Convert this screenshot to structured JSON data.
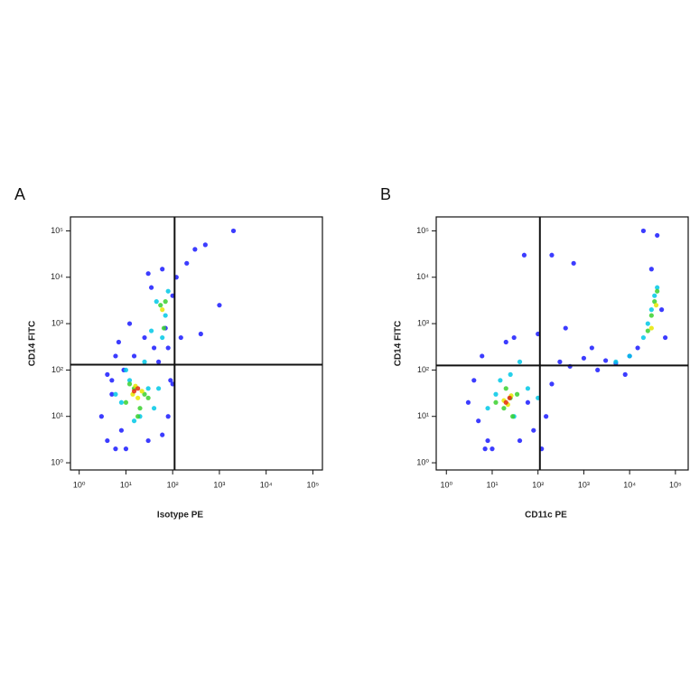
{
  "chart_data": [
    {
      "type": "scatter",
      "panel": "A",
      "x_label": "Isotype PE",
      "y_label": "CD14 FITC",
      "log_x": true,
      "log_y": true,
      "xlim": [
        0.65,
        160000
      ],
      "ylim": [
        0.7,
        200000
      ],
      "xticks": [
        {
          "value": 1,
          "label": "10⁰"
        },
        {
          "value": 10,
          "label": "10¹"
        },
        {
          "value": 100,
          "label": "10²"
        },
        {
          "value": 1000,
          "label": "10³"
        },
        {
          "value": 10000,
          "label": "10⁴"
        },
        {
          "value": 100000,
          "label": "10⁵"
        }
      ],
      "yticks": [
        {
          "value": 1,
          "label": "10⁰"
        },
        {
          "value": 10,
          "label": "10¹"
        },
        {
          "value": 100,
          "label": "10²"
        },
        {
          "value": 1000,
          "label": "10³"
        },
        {
          "value": 10000,
          "label": "10⁴"
        },
        {
          "value": 100000,
          "label": "10⁵"
        }
      ],
      "gate_x": 110,
      "gate_y": 130,
      "series": [
        {
          "color": "#1a1aff",
          "x": [
            3,
            5,
            4,
            8,
            6,
            30,
            60,
            80,
            90,
            50,
            4,
            6,
            10,
            40,
            70,
            25,
            12,
            7,
            5,
            100,
            200,
            300,
            500,
            1000,
            400,
            150,
            120,
            2000,
            60,
            30,
            15,
            9,
            80,
            100,
            35
          ],
          "y": [
            10,
            30,
            80,
            5,
            200,
            3,
            4,
            10,
            60,
            150,
            3,
            2,
            2,
            300,
            800,
            500,
            1000,
            400,
            60,
            4000,
            20000,
            40000,
            50000,
            2500,
            600,
            500,
            10000,
            100000,
            15000,
            12000,
            200,
            100,
            300,
            50,
            6000
          ]
        },
        {
          "color": "#00c8e6",
          "x": [
            8,
            12,
            20,
            30,
            40,
            10,
            25,
            50,
            60,
            70,
            45,
            15,
            6,
            35,
            80
          ],
          "y": [
            20,
            60,
            10,
            40,
            15,
            100,
            150,
            40,
            500,
            1500,
            3000,
            8,
            30,
            700,
            5000
          ]
        },
        {
          "color": "#39d12e",
          "x": [
            10,
            15,
            20,
            25,
            12,
            18,
            30,
            55,
            65,
            70
          ],
          "y": [
            20,
            40,
            15,
            30,
            50,
            10,
            25,
            2500,
            800,
            3000
          ]
        },
        {
          "color": "#e6e600",
          "x": [
            14,
            18,
            22,
            16,
            60
          ],
          "y": [
            30,
            25,
            35,
            45,
            2000
          ]
        },
        {
          "color": "#e62a10",
          "x": [
            15,
            18
          ],
          "y": [
            35,
            40
          ]
        }
      ]
    },
    {
      "type": "scatter",
      "panel": "B",
      "x_label": "CD11c PE",
      "y_label": "CD14 FITC",
      "log_x": true,
      "log_y": true,
      "xlim": [
        0.6,
        190000
      ],
      "ylim": [
        0.7,
        200000
      ],
      "xticks": [
        {
          "value": 1,
          "label": "10⁰"
        },
        {
          "value": 10,
          "label": "10¹"
        },
        {
          "value": 100,
          "label": "10²"
        },
        {
          "value": 1000,
          "label": "10³"
        },
        {
          "value": 10000,
          "label": "10⁴"
        },
        {
          "value": 100000,
          "label": "10⁵"
        }
      ],
      "yticks": [
        {
          "value": 1,
          "label": "10⁰"
        },
        {
          "value": 10,
          "label": "10¹"
        },
        {
          "value": 100,
          "label": "10²"
        },
        {
          "value": 1000,
          "label": "10³"
        },
        {
          "value": 10000,
          "label": "10⁴"
        },
        {
          "value": 100000,
          "label": "10⁵"
        }
      ],
      "gate_x": 110,
      "gate_y": 125,
      "series": [
        {
          "color": "#1a1aff",
          "x": [
            3,
            5,
            4,
            6,
            8,
            10,
            40,
            80,
            150,
            200,
            300,
            500,
            1000,
            2000,
            3000,
            5000,
            8000,
            10000,
            15000,
            200,
            50,
            30,
            20,
            7,
            100,
            400,
            600,
            20000,
            50000,
            60000,
            30000,
            40000,
            1500,
            120,
            60
          ],
          "y": [
            20,
            8,
            60,
            200,
            3,
            2,
            3,
            5,
            10,
            50,
            150,
            120,
            180,
            100,
            160,
            140,
            80,
            200,
            300,
            30000,
            30000,
            500,
            400,
            2,
            600,
            800,
            20000,
            100000,
            2000,
            500,
            15000,
            80000,
            300,
            2,
            20
          ]
        },
        {
          "color": "#00c8e6",
          "x": [
            8,
            12,
            30,
            60,
            100,
            15,
            25,
            40,
            20000,
            25000,
            30000,
            35000,
            40000,
            10000,
            5000
          ],
          "y": [
            15,
            30,
            10,
            40,
            25,
            60,
            80,
            150,
            500,
            1000,
            2000,
            4000,
            6000,
            200,
            150
          ]
        },
        {
          "color": "#39d12e",
          "x": [
            12,
            18,
            25,
            35,
            20,
            28,
            25000,
            30000,
            35000,
            40000
          ],
          "y": [
            20,
            15,
            25,
            30,
            40,
            10,
            700,
            1500,
            3000,
            5000
          ]
        },
        {
          "color": "#e6e600",
          "x": [
            18,
            22,
            26,
            30000,
            38000
          ],
          "y": [
            22,
            18,
            28,
            800,
            2500
          ]
        },
        {
          "color": "#e62a10",
          "x": [
            20,
            24
          ],
          "y": [
            20,
            25
          ]
        }
      ]
    }
  ]
}
